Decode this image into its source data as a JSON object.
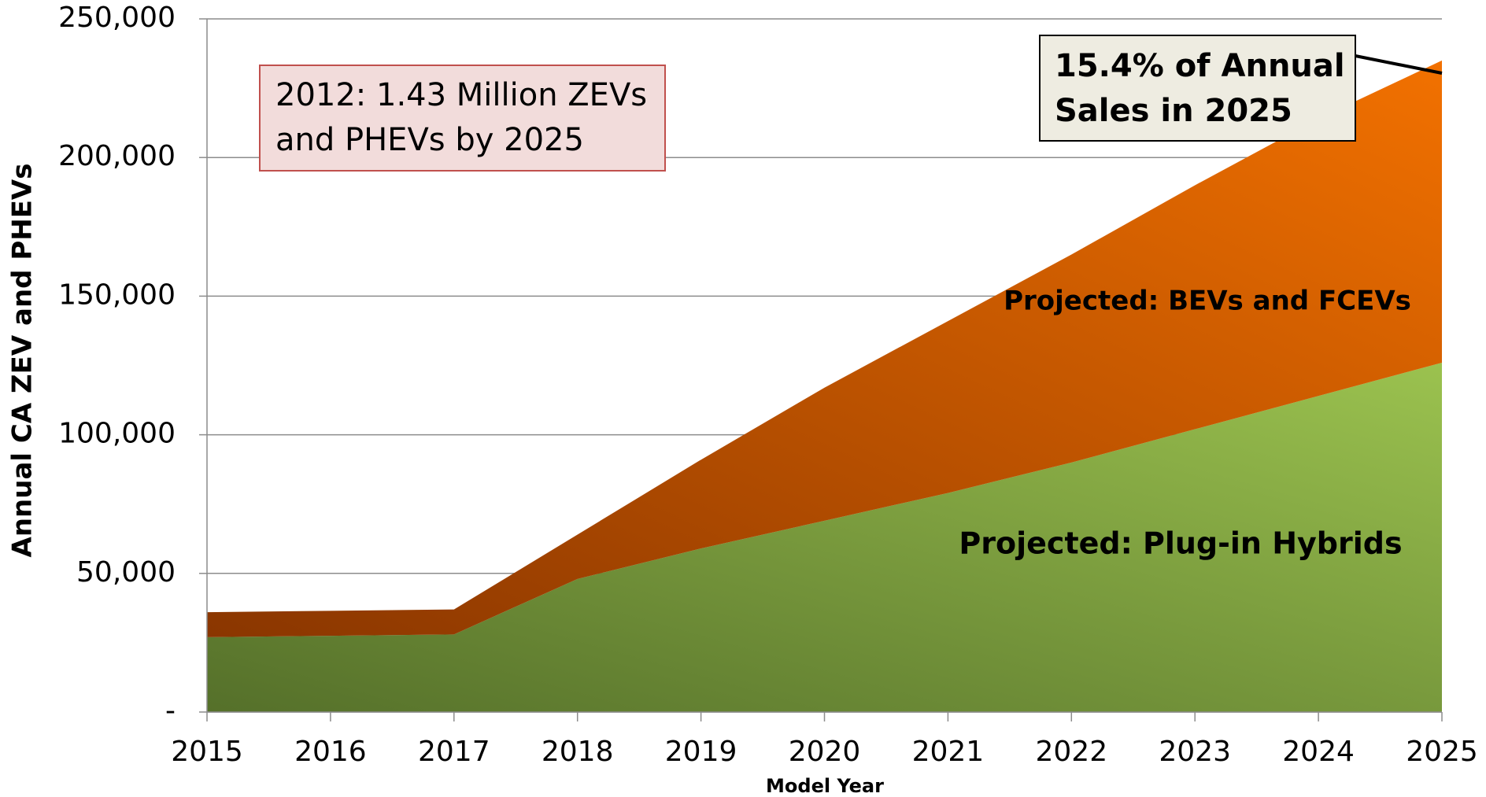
{
  "chart_data": {
    "type": "stacked_area",
    "y_label": "Annual CA ZEV and PHEVs",
    "x_label": "Model Year",
    "x": [
      2015,
      2016,
      2017,
      2018,
      2019,
      2020,
      2021,
      2022,
      2023,
      2024,
      2025
    ],
    "xlim": [
      2015,
      2025
    ],
    "xticks": [
      2015,
      2016,
      2017,
      2018,
      2019,
      2020,
      2021,
      2022,
      2023,
      2024,
      2025
    ],
    "ylim": [
      0,
      250000
    ],
    "yticks": [
      {
        "value": 0,
        "label": "-"
      },
      {
        "value": 50000,
        "label": "50,000"
      },
      {
        "value": 100000,
        "label": "100,000"
      },
      {
        "value": 150000,
        "label": "150,000"
      },
      {
        "value": 200000,
        "label": "200,000"
      },
      {
        "value": 250000,
        "label": "250,000"
      }
    ],
    "grid": true,
    "series": [
      {
        "name": "Projected: Plug-in Hybrids",
        "color": "#9bc24f",
        "values": [
          27000,
          27500,
          28000,
          48000,
          59000,
          69000,
          79000,
          90000,
          102000,
          114000,
          126000
        ]
      },
      {
        "name": "Projected: BEVs and FCEVs",
        "color": "#f27100",
        "values": [
          9000,
          9000,
          9000,
          16000,
          32000,
          48000,
          62000,
          75000,
          88000,
          100000,
          109000
        ]
      }
    ],
    "annotations": [
      {
        "lines": [
          "2012: 1.43 Million ZEVs",
          "and PHEVs by 2025"
        ]
      },
      {
        "lines": [
          "15.4% of Annual",
          "Sales in 2025"
        ]
      }
    ]
  }
}
